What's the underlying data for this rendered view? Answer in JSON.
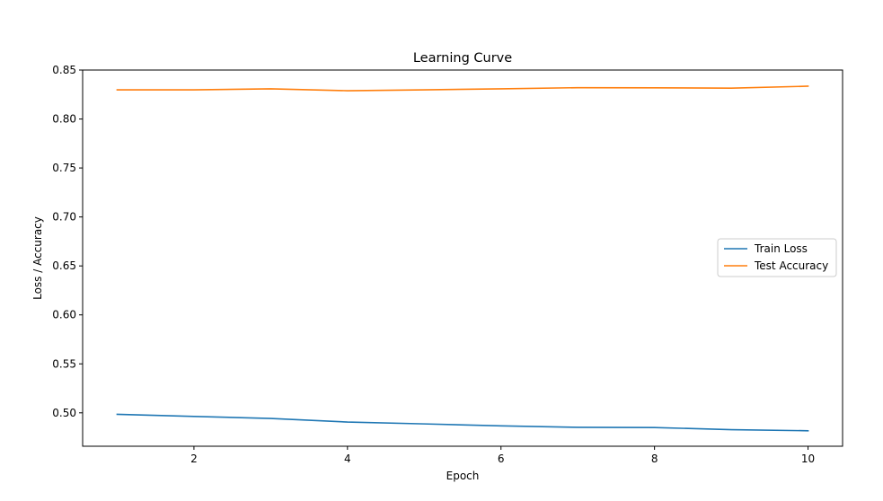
{
  "chart_data": {
    "type": "line",
    "title": "Learning Curve",
    "xlabel": "Epoch",
    "ylabel": "Loss / Accuracy",
    "x": [
      1,
      2,
      3,
      4,
      5,
      6,
      7,
      8,
      9,
      10
    ],
    "series": [
      {
        "name": "Train Loss",
        "color": "#1f77b4",
        "values": [
          0.4985,
          0.4963,
          0.4943,
          0.4906,
          0.4887,
          0.4867,
          0.4852,
          0.485,
          0.4828,
          0.4817
        ]
      },
      {
        "name": "Test Accuracy",
        "color": "#ff7f0e",
        "values": [
          0.8298,
          0.8298,
          0.8308,
          0.8289,
          0.8298,
          0.8308,
          0.832,
          0.8318,
          0.8315,
          0.8335
        ]
      }
    ],
    "xlim": [
      0.55,
      10.45
    ],
    "ylim": [
      0.4659,
      0.85
    ],
    "xticks": [
      2,
      4,
      6,
      8,
      10
    ],
    "xtick_labels": [
      "2",
      "4",
      "6",
      "8",
      "10"
    ],
    "yticks": [
      0.5,
      0.55,
      0.6,
      0.65,
      0.7,
      0.75,
      0.8,
      0.85
    ],
    "ytick_labels": [
      "0.50",
      "0.55",
      "0.60",
      "0.65",
      "0.70",
      "0.75",
      "0.80",
      "0.85"
    ],
    "grid": false,
    "legend_position": "center-right"
  }
}
